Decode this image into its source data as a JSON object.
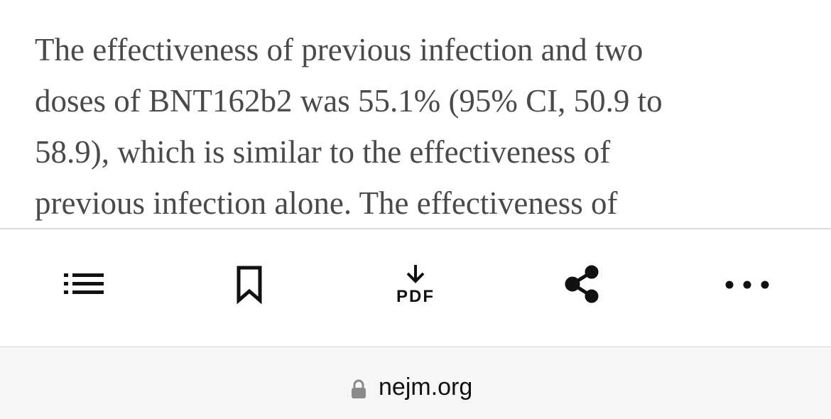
{
  "article": {
    "lines": [
      "The effectiveness of previous infection and two",
      "doses of BNT162b2 was 55.1% (95% CI, 50.9 to",
      "58.9), which is similar to the effectiveness of",
      "previous infection alone. The effectiveness of"
    ]
  },
  "toolbar": {
    "pdf_label": "PDF"
  },
  "address_bar": {
    "domain": "nejm.org"
  }
}
